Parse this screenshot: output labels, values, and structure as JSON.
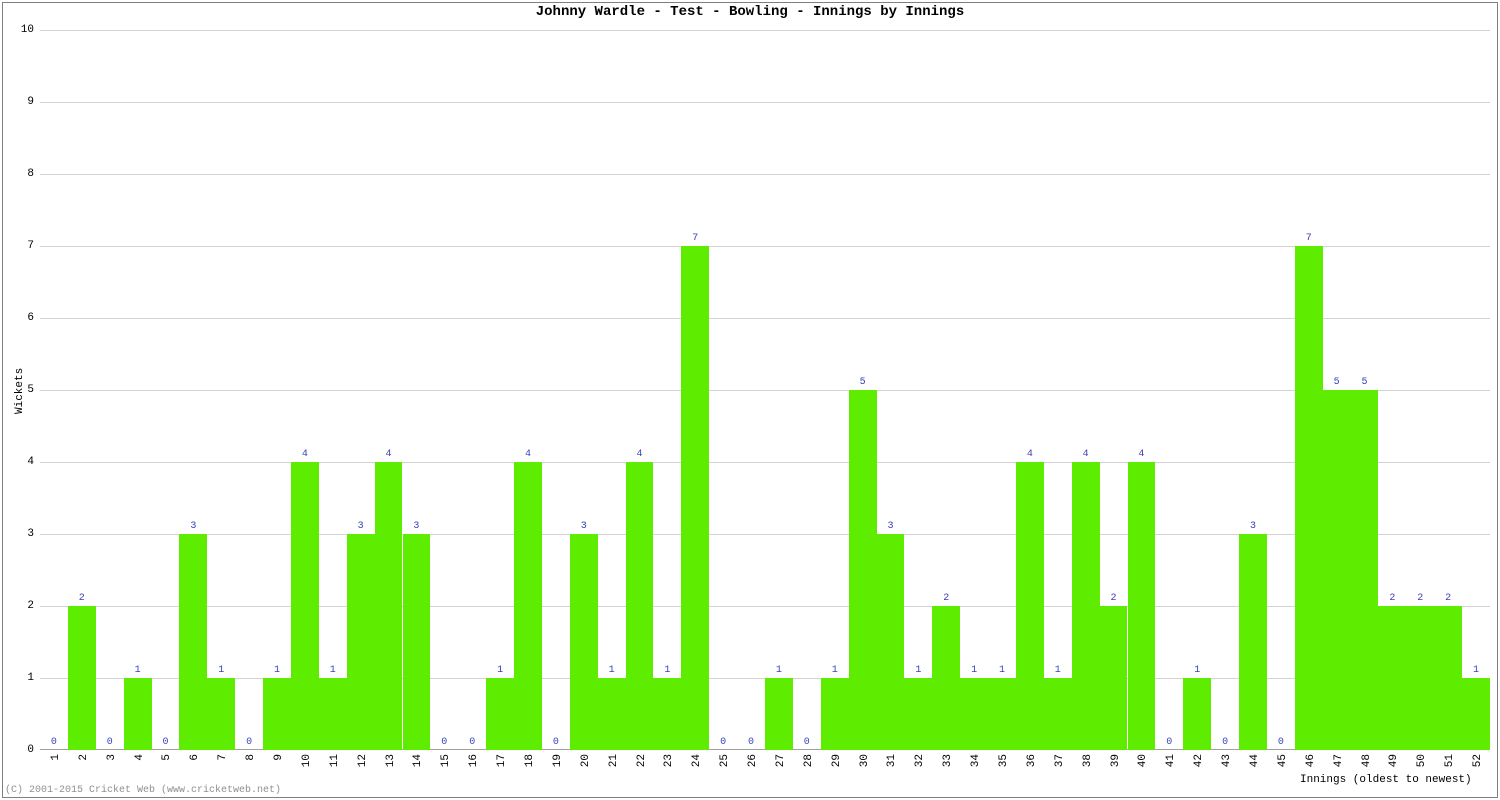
{
  "chart": {
    "type": "bar",
    "title": "Johnny Wardle - Test - Bowling - Innings by Innings",
    "x_axis_title": "Innings (oldest to newest)",
    "y_axis_title": "Wickets",
    "ylim": [
      0,
      10
    ],
    "ytick_step": 1,
    "bar_color": "#5eed00",
    "value_label_color": "#3b42b3",
    "grid_color": "#d3d3d3",
    "axis_color": "#a0a0a0",
    "background_color": "#ffffff",
    "title_fontsize": 14,
    "label_fontsize": 11,
    "value_fontsize": 10,
    "bar_gap_ratio": 0.0,
    "values": [
      0,
      2,
      0,
      1,
      0,
      3,
      1,
      0,
      1,
      4,
      1,
      3,
      4,
      3,
      0,
      0,
      1,
      4,
      0,
      3,
      1,
      4,
      1,
      7,
      0,
      0,
      1,
      0,
      1,
      5,
      3,
      1,
      2,
      1,
      1,
      4,
      1,
      4,
      2,
      4,
      0,
      1,
      0,
      3,
      0,
      7,
      5,
      5,
      2,
      2,
      2,
      1
    ],
    "categories": [
      "1",
      "2",
      "3",
      "4",
      "5",
      "6",
      "7",
      "8",
      "9",
      "10",
      "11",
      "12",
      "13",
      "14",
      "15",
      "16",
      "17",
      "18",
      "19",
      "20",
      "21",
      "22",
      "23",
      "24",
      "25",
      "26",
      "27",
      "28",
      "29",
      "30",
      "31",
      "32",
      "33",
      "34",
      "35",
      "36",
      "37",
      "38",
      "39",
      "40",
      "41",
      "42",
      "43",
      "44",
      "45",
      "46",
      "47",
      "48",
      "49",
      "50",
      "51",
      "52"
    ]
  },
  "copyright": "(C) 2001-2015 Cricket Web (www.cricketweb.net)"
}
